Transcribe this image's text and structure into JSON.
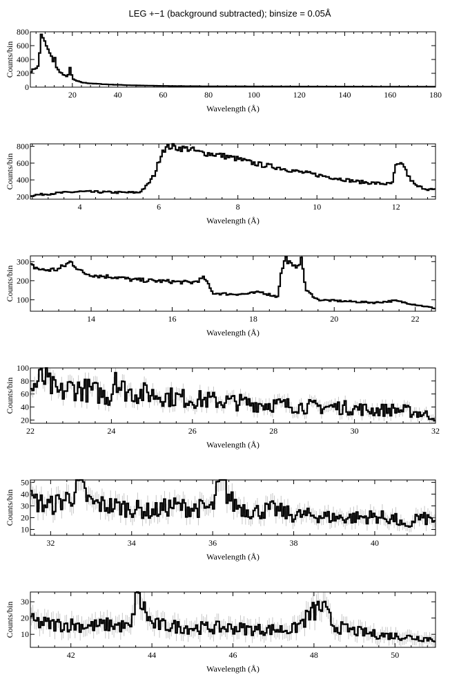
{
  "chart_data": {
    "title": "LEG +−1 (background subtracted); binsize = 0.05Å",
    "type": "line",
    "panels": [
      {
        "xlabel": "Wavelength (Å)",
        "ylabel": "Counts/bin",
        "xlim": [
          1.5,
          180
        ],
        "ylim": [
          0,
          800
        ],
        "xticks": [
          20,
          40,
          60,
          80,
          100,
          120,
          140,
          160,
          180
        ],
        "yticks": [
          0,
          200,
          400,
          600,
          800
        ],
        "errors": false,
        "series": [
          {
            "x": [
              1.5,
              3,
              4,
              5,
              5.8,
              6.2,
              6.5,
              7,
              8,
              9,
              10,
              11,
              11.8,
              12.1,
              12.5,
              13,
              14,
              15,
              16,
              17,
              18,
              18.8,
              19.2,
              20,
              22,
              24,
              26,
              30,
              35,
              40,
              45,
              50,
              60,
              70,
              80,
              100,
              120,
              140,
              160,
              180
            ],
            "y": [
              220,
              260,
              280,
              300,
              560,
              790,
              760,
              700,
              640,
              560,
              490,
              420,
              360,
              520,
              330,
              280,
              240,
              210,
              180,
              160,
              140,
              300,
              260,
              120,
              90,
              70,
              60,
              50,
              40,
              34,
              28,
              24,
              18,
              14,
              12,
              10,
              9,
              8,
              7,
              6
            ]
          }
        ]
      },
      {
        "xlabel": "Wavelength (Å)",
        "ylabel": "Counts/bin",
        "xlim": [
          2.75,
          13
        ],
        "ylim": [
          170,
          830
        ],
        "xticks": [
          4,
          6,
          8,
          10,
          12
        ],
        "yticks": [
          200,
          400,
          600,
          800
        ],
        "errors": false,
        "series": [
          {
            "x": [
              2.75,
              3,
              3.5,
              4,
              4.5,
              5,
              5.5,
              5.7,
              5.9,
              6.0,
              6.1,
              6.3,
              6.5,
              6.8,
              7,
              7.5,
              8,
              8.3,
              8.6,
              9,
              9.5,
              10,
              10.5,
              11,
              11.5,
              11.9,
              12.0,
              12.2,
              12.3,
              12.5,
              12.8,
              13
            ],
            "y": [
              215,
              225,
              245,
              260,
              255,
              250,
              250,
              330,
              470,
              620,
              760,
              800,
              780,
              770,
              730,
              700,
              650,
              610,
              580,
              550,
              500,
              460,
              420,
              380,
              360,
              350,
              570,
              580,
              450,
              330,
              290,
              280
            ]
          }
        ]
      },
      {
        "xlabel": "Wavelength (Å)",
        "ylabel": "Counts/bin",
        "xlim": [
          12.5,
          22.5
        ],
        "ylim": [
          40,
          330
        ],
        "xticks": [
          14,
          16,
          18,
          20,
          22
        ],
        "yticks": [
          100,
          200,
          300
        ],
        "errors": false,
        "series": [
          {
            "x": [
              12.5,
              12.8,
              13.2,
              13.5,
              13.8,
              14.2,
              14.6,
              15,
              15.5,
              16,
              16.5,
              16.8,
              17,
              17.4,
              17.8,
              18.2,
              18.6,
              18.7,
              18.8,
              19.0,
              19.2,
              19.3,
              19.6,
              20,
              20.5,
              21,
              21.5,
              22,
              22.5
            ],
            "y": [
              280,
              255,
              260,
              300,
              240,
              225,
              220,
              205,
              200,
              195,
              190,
              215,
              135,
              130,
              130,
              140,
              115,
              250,
              320,
              265,
              310,
              150,
              100,
              95,
              90,
              85,
              95,
              75,
              55
            ]
          }
        ]
      },
      {
        "xlabel": "Wavelength (Å)",
        "ylabel": "Counts/bin",
        "xlim": [
          22,
          32
        ],
        "ylim": [
          15,
          100
        ],
        "xticks": [
          22,
          24,
          26,
          28,
          30,
          32
        ],
        "yticks": [
          20,
          40,
          60,
          80,
          100
        ],
        "errors": true,
        "series": [
          {
            "x": [
              22,
              22.3,
              22.7,
              23,
              23.5,
              24,
              24.1,
              24.2,
              24.5,
              25,
              25.5,
              26,
              26.5,
              27,
              27.5,
              28,
              28.5,
              29,
              29.5,
              30,
              30.5,
              31,
              31.5,
              32
            ],
            "y": [
              65,
              85,
              60,
              70,
              65,
              55,
              100,
              70,
              62,
              60,
              55,
              52,
              50,
              48,
              45,
              44,
              42,
              40,
              40,
              38,
              35,
              36,
              32,
              25
            ]
          }
        ]
      },
      {
        "xlabel": "Wavelength (Å)",
        "ylabel": "Counts/bin",
        "xlim": [
          31.5,
          41.5
        ],
        "ylim": [
          5,
          52
        ],
        "xticks": [
          32,
          34,
          36,
          38,
          40
        ],
        "yticks": [
          10,
          20,
          30,
          40,
          50
        ],
        "errors": true,
        "series": [
          {
            "x": [
              31.5,
              32,
              32.5,
              32.7,
              33,
              33.5,
              34,
              34.5,
              35,
              35.5,
              36,
              36.2,
              36.5,
              37,
              37.5,
              38,
              38.5,
              39,
              39.5,
              40,
              40.5,
              40.8,
              41,
              41.5
            ],
            "y": [
              35,
              30,
              38,
              48,
              32,
              30,
              28,
              25,
              30,
              28,
              28,
              52,
              32,
              25,
              27,
              22,
              22,
              20,
              20,
              21,
              19,
              10,
              20,
              18
            ]
          }
        ]
      },
      {
        "xlabel": "Wavelength (Å)",
        "ylabel": "Counts/bin",
        "xlim": [
          41,
          51
        ],
        "ylim": [
          2,
          36
        ],
        "xticks": [
          42,
          44,
          46,
          48,
          50
        ],
        "yticks": [
          10,
          20,
          30
        ],
        "errors": true,
        "series": [
          {
            "x": [
              41,
              41.5,
              42,
              42.5,
              43,
              43.5,
              43.6,
              44,
              44.5,
              45,
              45.5,
              46,
              46.5,
              47,
              47.5,
              48,
              48.2,
              48.5,
              49,
              49.5,
              50,
              50.5,
              51
            ],
            "y": [
              18,
              16,
              16,
              15,
              16,
              14,
              36,
              16,
              15,
              14,
              14,
              14,
              13,
              13,
              13,
              24,
              27,
              15,
              12,
              10,
              9,
              8,
              7
            ]
          }
        ]
      }
    ]
  }
}
